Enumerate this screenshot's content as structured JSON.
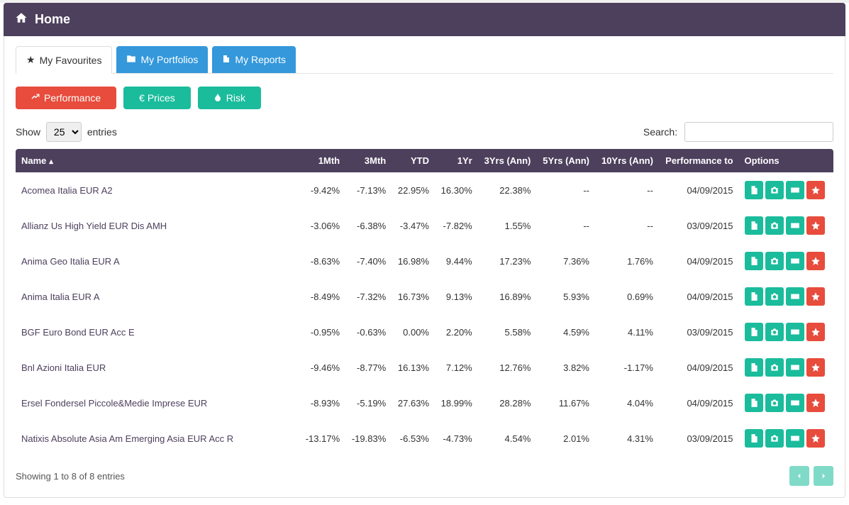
{
  "header": {
    "title": "Home"
  },
  "tabs": [
    {
      "label": "My Favourites",
      "icon": "star"
    },
    {
      "label": "My Portfolios",
      "icon": "folder"
    },
    {
      "label": "My Reports",
      "icon": "file"
    }
  ],
  "toolbar": {
    "performance": "Performance",
    "prices": "€ Prices",
    "risk": "Risk"
  },
  "table_controls": {
    "show_label": "Show",
    "entries_label": "entries",
    "page_size": "25",
    "search_label": "Search:",
    "search_value": ""
  },
  "columns": {
    "name": "Name",
    "m1": "1Mth",
    "m3": "3Mth",
    "ytd": "YTD",
    "y1": "1Yr",
    "y3": "3Yrs (Ann)",
    "y5": "5Yrs (Ann)",
    "y10": "10Yrs (Ann)",
    "perf_to": "Performance to",
    "options": "Options"
  },
  "rows": [
    {
      "name": "Acomea Italia EUR A2",
      "m1": "-9.42%",
      "m3": "-7.13%",
      "ytd": "22.95%",
      "y1": "16.30%",
      "y3": "22.38%",
      "y5": "--",
      "y10": "--",
      "perf_to": "04/09/2015"
    },
    {
      "name": "Allianz Us High Yield EUR Dis AMH",
      "m1": "-3.06%",
      "m3": "-6.38%",
      "ytd": "-3.47%",
      "y1": "-7.82%",
      "y3": "1.55%",
      "y5": "--",
      "y10": "--",
      "perf_to": "03/09/2015"
    },
    {
      "name": "Anima Geo Italia EUR A",
      "m1": "-8.63%",
      "m3": "-7.40%",
      "ytd": "16.98%",
      "y1": "9.44%",
      "y3": "17.23%",
      "y5": "7.36%",
      "y10": "1.76%",
      "perf_to": "04/09/2015"
    },
    {
      "name": "Anima Italia EUR A",
      "m1": "-8.49%",
      "m3": "-7.32%",
      "ytd": "16.73%",
      "y1": "9.13%",
      "y3": "16.89%",
      "y5": "5.93%",
      "y10": "0.69%",
      "perf_to": "04/09/2015"
    },
    {
      "name": "BGF Euro Bond EUR Acc E",
      "m1": "-0.95%",
      "m3": "-0.63%",
      "ytd": "0.00%",
      "y1": "2.20%",
      "y3": "5.58%",
      "y5": "4.59%",
      "y10": "4.11%",
      "perf_to": "03/09/2015"
    },
    {
      "name": "Bnl Azioni Italia EUR",
      "m1": "-9.46%",
      "m3": "-8.77%",
      "ytd": "16.13%",
      "y1": "7.12%",
      "y3": "12.76%",
      "y5": "3.82%",
      "y10": "-1.17%",
      "perf_to": "04/09/2015"
    },
    {
      "name": "Ersel Fondersel Piccole&Medie Imprese EUR",
      "m1": "-8.93%",
      "m3": "-5.19%",
      "ytd": "27.63%",
      "y1": "18.99%",
      "y3": "28.28%",
      "y5": "11.67%",
      "y10": "4.04%",
      "perf_to": "04/09/2015"
    },
    {
      "name": "Natixis Absolute Asia Am Emerging Asia EUR Acc R",
      "m1": "-13.17%",
      "m3": "-19.83%",
      "ytd": "-6.53%",
      "y1": "-4.73%",
      "y3": "4.54%",
      "y5": "2.01%",
      "y10": "4.31%",
      "perf_to": "03/09/2015"
    }
  ],
  "footer": {
    "info": "Showing 1 to 8 of 8 entries"
  },
  "colors": {
    "header_bg": "#4d405d",
    "btn_green": "#1abc9c",
    "btn_red": "#e74c3c",
    "btn_blue": "#3498db"
  }
}
